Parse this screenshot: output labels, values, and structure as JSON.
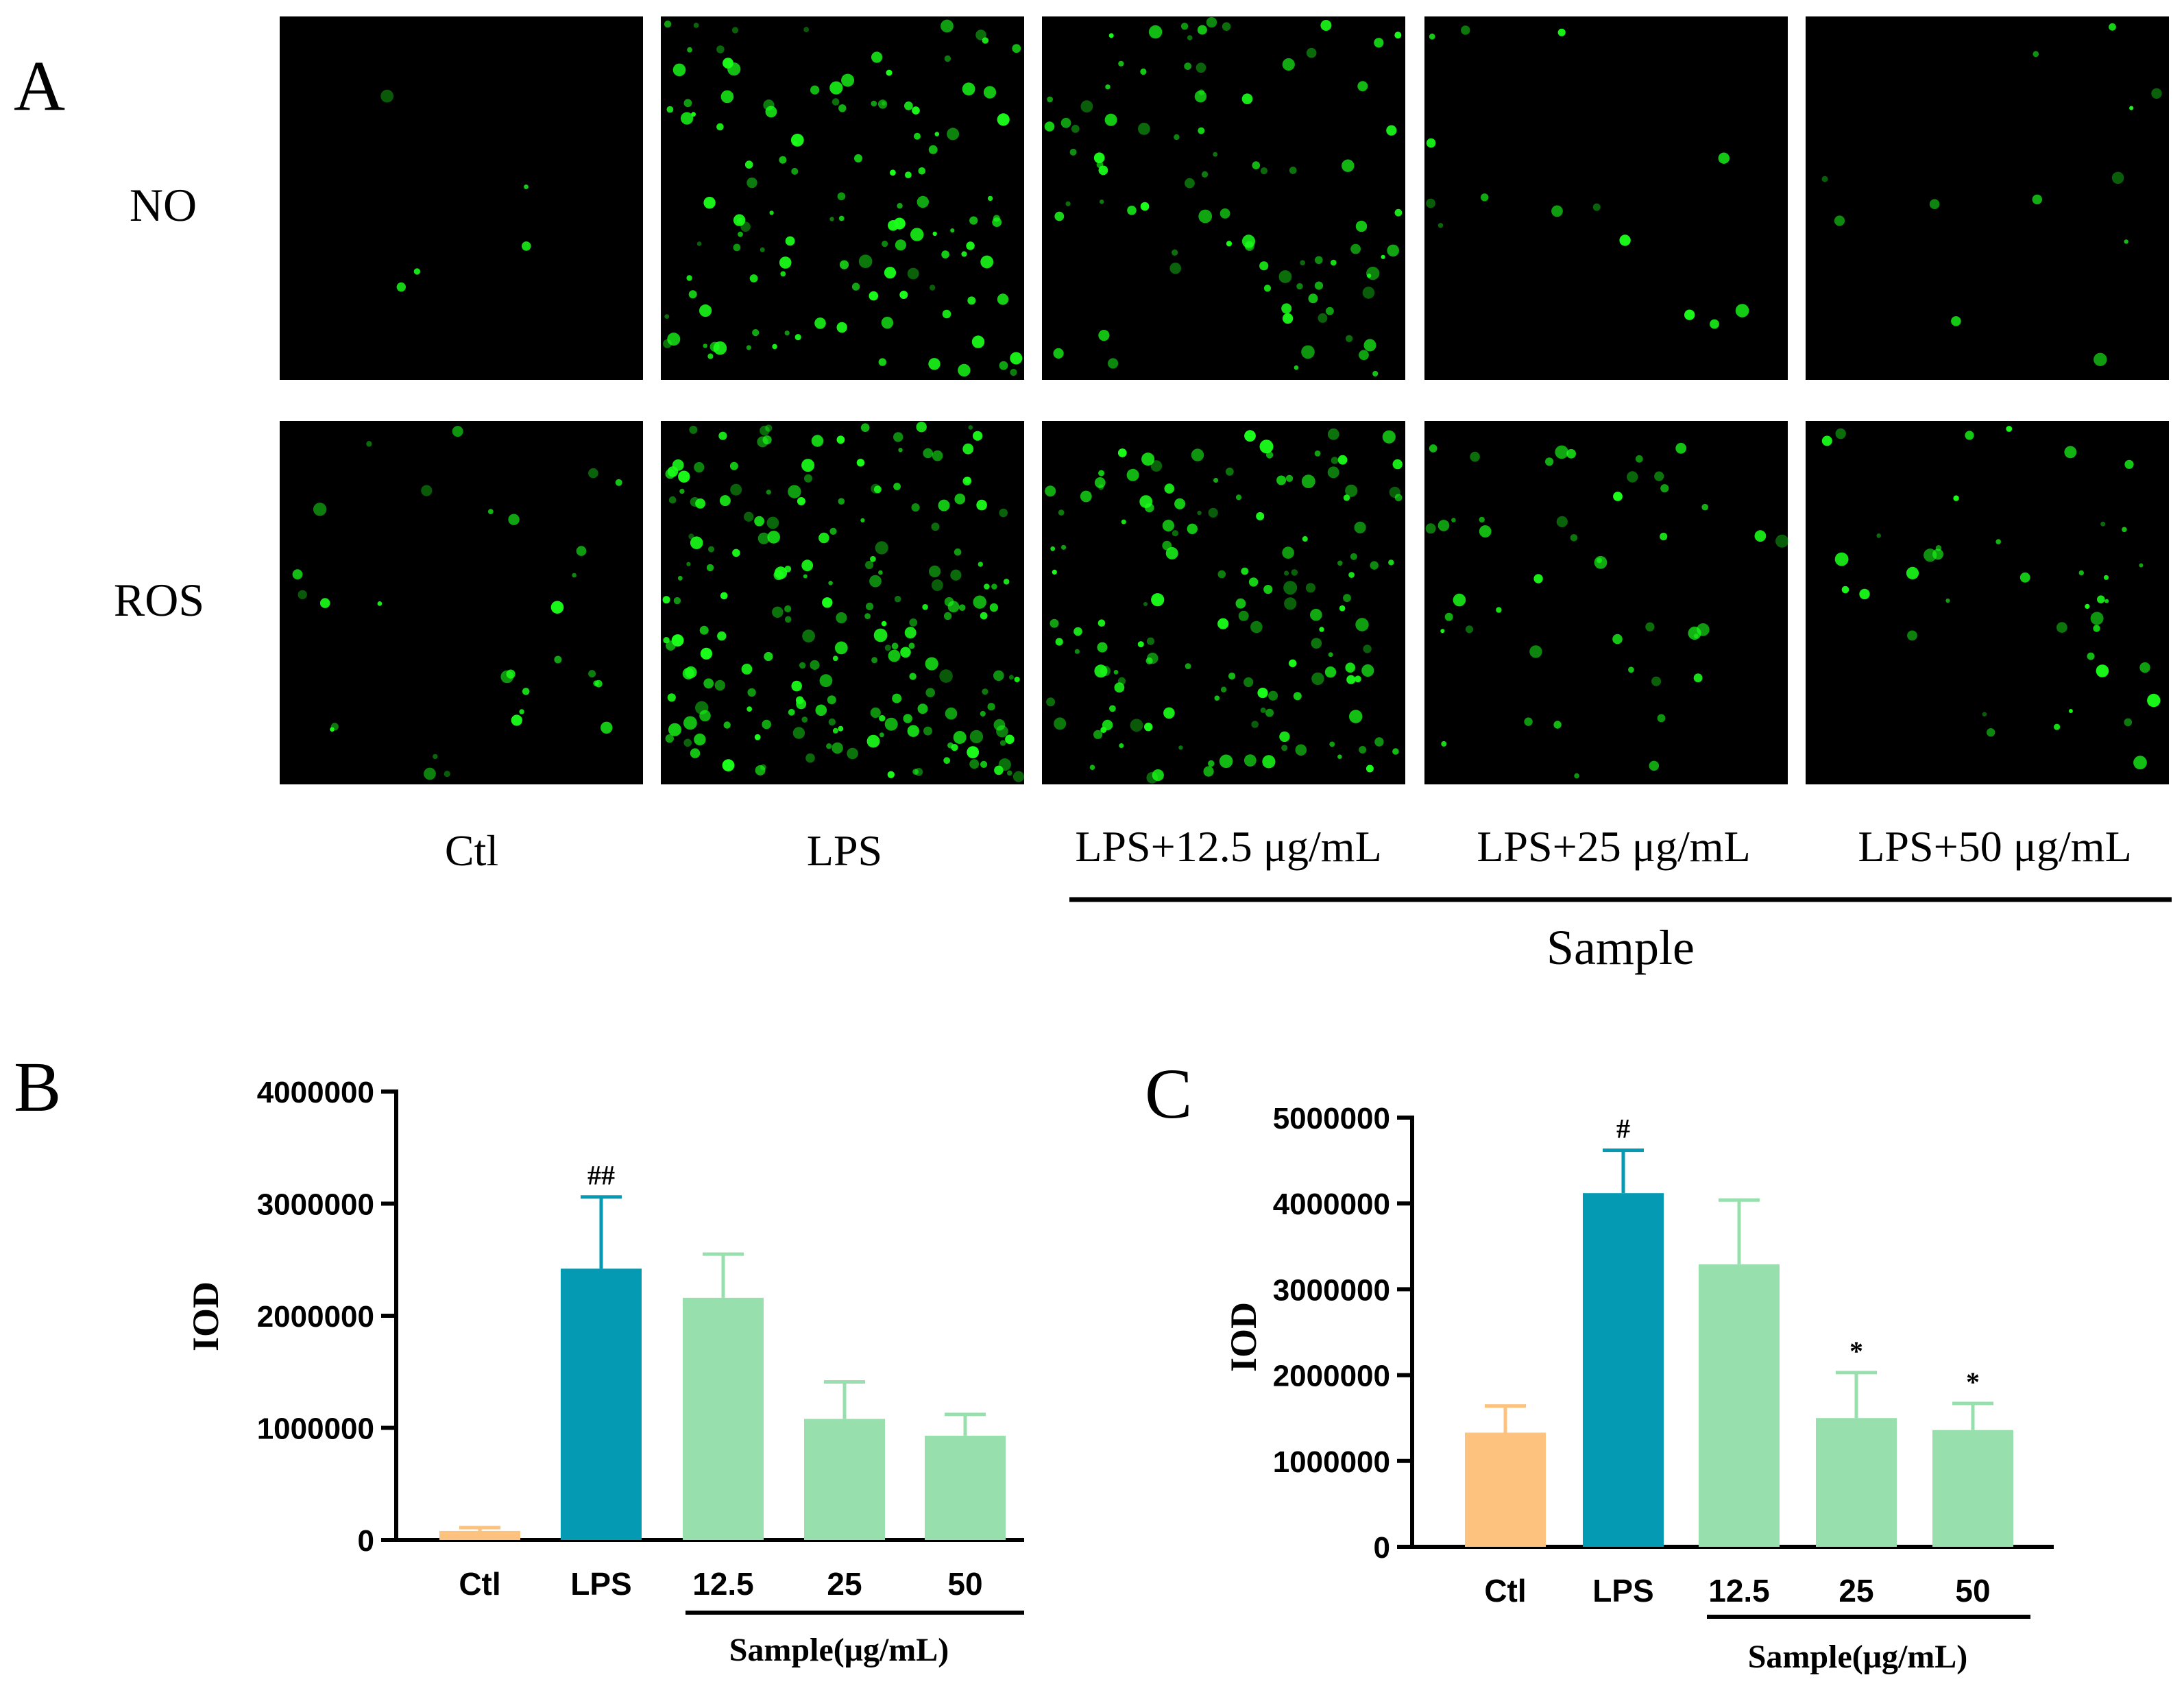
{
  "panel_a": {
    "label": "A",
    "row_labels": [
      "NO",
      "ROS"
    ],
    "column_labels": [
      "Ctl",
      "LPS",
      "LPS+12.5 μg/mL",
      "LPS+25 μg/mL",
      "LPS+50 μg/mL"
    ],
    "group_label": "Sample",
    "fluorescence_color": "#1aff1a",
    "cell_density": [
      [
        5,
        120,
        85,
        14,
        12
      ],
      [
        30,
        200,
        140,
        45,
        40
      ]
    ]
  },
  "panel_b": {
    "label": "B"
  },
  "panel_c": {
    "label": "C"
  },
  "colors": {
    "ctl": "#fcc27e",
    "lps": "#059ab4",
    "sample": "#97e0ae",
    "error_lps": "#059ab4",
    "error_sample": "#97e0ae"
  },
  "chart_data": [
    {
      "type": "bar",
      "panel": "B",
      "categories": [
        "Ctl",
        "LPS",
        "12.5",
        "25",
        "50"
      ],
      "values": [
        80000,
        2420000,
        2160000,
        1080000,
        930000
      ],
      "error_upper": [
        110000,
        3060000,
        2550000,
        1410000,
        1120000
      ],
      "significance": [
        "",
        "##",
        "",
        "",
        ""
      ],
      "ylabel": "IOD",
      "group_label": "Sample(μg/mL)",
      "ylim": [
        0,
        4000000
      ],
      "yticks": [
        0,
        1000000,
        2000000,
        3000000,
        4000000
      ],
      "grid": false
    },
    {
      "type": "bar",
      "panel": "C",
      "categories": [
        "Ctl",
        "LPS",
        "12.5",
        "25",
        "50"
      ],
      "values": [
        1330000,
        4120000,
        3290000,
        1500000,
        1360000
      ],
      "error_upper": [
        1640000,
        4620000,
        4040000,
        2030000,
        1670000
      ],
      "significance": [
        "",
        "#",
        "",
        "*",
        "*"
      ],
      "ylabel": "IOD",
      "group_label": "Sample(μg/mL)",
      "ylim": [
        0,
        5000000
      ],
      "yticks": [
        0,
        1000000,
        2000000,
        3000000,
        4000000,
        5000000
      ],
      "grid": false
    }
  ]
}
